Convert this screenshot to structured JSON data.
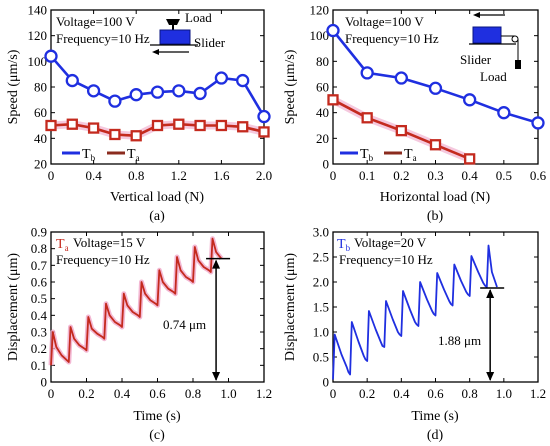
{
  "chart_data": [
    {
      "id": "a",
      "type": "line",
      "caption": "(a)",
      "xlabel": "Vertical load (N)",
      "ylabel": "Speed (μm/s)",
      "xlim": [
        0,
        2.0
      ],
      "ylim": [
        20,
        140
      ],
      "xticks": [
        "0",
        "0.4",
        "0.8",
        "1.2",
        "1.6",
        "2.0"
      ],
      "xtick_values": [
        0,
        0.4,
        0.8,
        1.2,
        1.6,
        2.0
      ],
      "yticks": [
        "20",
        "40",
        "60",
        "80",
        "100",
        "120",
        "140"
      ],
      "ytick_values": [
        20,
        40,
        60,
        80,
        100,
        120,
        140
      ],
      "annotations": [
        "Voltage=100 V",
        "Frequency=10 Hz"
      ],
      "icon_labels": [
        "Load",
        "Slider"
      ],
      "legend_placement": "bottom-left",
      "series": [
        {
          "name": "Tb",
          "main": "T",
          "sub": "b",
          "color": "#1f2fe0",
          "marker": "circle",
          "x": [
            0,
            0.2,
            0.4,
            0.6,
            0.8,
            1.0,
            1.2,
            1.4,
            1.6,
            1.8,
            2.0
          ],
          "y": [
            104,
            85,
            77,
            69,
            74,
            76,
            77,
            75,
            87,
            85,
            57
          ]
        },
        {
          "name": "Ta",
          "main": "T",
          "sub": "a",
          "color": "#c42a1e",
          "marker": "square",
          "x": [
            0,
            0.2,
            0.4,
            0.6,
            0.8,
            1.0,
            1.2,
            1.4,
            1.6,
            1.8,
            2.0
          ],
          "y": [
            50,
            51,
            48,
            43,
            42,
            50,
            51,
            50,
            50,
            49,
            45
          ]
        }
      ]
    },
    {
      "id": "b",
      "type": "line",
      "caption": "(b)",
      "xlabel": "Horizontal load (N)",
      "ylabel": "Speed (μm/s)",
      "xlim": [
        0,
        0.6
      ],
      "ylim": [
        0,
        120
      ],
      "xticks": [
        "0",
        "0.1",
        "0.2",
        "0.3",
        "0.4",
        "0.5",
        "0.6"
      ],
      "xtick_values": [
        0,
        0.1,
        0.2,
        0.3,
        0.4,
        0.5,
        0.6
      ],
      "yticks": [
        "0",
        "20",
        "40",
        "60",
        "80",
        "100",
        "120"
      ],
      "ytick_values": [
        0,
        20,
        40,
        60,
        80,
        100,
        120
      ],
      "annotations": [
        "Voltage=100 V",
        "Frequency=10 Hz"
      ],
      "icon_labels": [
        "Slider",
        "Load"
      ],
      "legend_placement": "bottom-left",
      "series": [
        {
          "name": "Tb",
          "main": "T",
          "sub": "b",
          "color": "#1f2fe0",
          "marker": "circle",
          "x": [
            0,
            0.1,
            0.2,
            0.3,
            0.4,
            0.5,
            0.6
          ],
          "y": [
            104,
            71,
            67,
            59,
            50,
            40,
            32
          ]
        },
        {
          "name": "Ta",
          "main": "T",
          "sub": "a",
          "color": "#c42a1e",
          "marker": "square",
          "x": [
            0,
            0.1,
            0.2,
            0.3,
            0.4
          ],
          "y": [
            50,
            36,
            26,
            15,
            4
          ]
        }
      ]
    },
    {
      "id": "c",
      "type": "line",
      "caption": "(c)",
      "xlabel": "Time (s)",
      "ylabel": "Displacement (μm)",
      "xlim": [
        0,
        1.2
      ],
      "ylim": [
        0,
        0.9
      ],
      "xticks": [
        "0",
        "0.2",
        "0.4",
        "0.6",
        "0.8",
        "1.0",
        "1.2"
      ],
      "xtick_values": [
        0,
        0.2,
        0.4,
        0.6,
        0.8,
        1.0,
        1.2
      ],
      "yticks": [
        "0",
        "0.1",
        "0.2",
        "0.3",
        "0.4",
        "0.5",
        "0.6",
        "0.7",
        "0.8",
        "0.9"
      ],
      "ytick_values": [
        0,
        0.1,
        0.2,
        0.3,
        0.4,
        0.5,
        0.6,
        0.7,
        0.8,
        0.9
      ],
      "label": {
        "main": "T",
        "sub": "a",
        "color": "#c42a1e"
      },
      "annotations": [
        "Voltage=15 V",
        "Frequency=10 Hz"
      ],
      "measure_label": "0.74 μm",
      "measure_value": 0.74,
      "series": [
        {
          "name": "Ta",
          "color": "#c42a1e",
          "x": [
            0.0,
            0.01,
            0.03,
            0.06,
            0.09,
            0.1,
            0.11,
            0.13,
            0.16,
            0.19,
            0.2,
            0.21,
            0.23,
            0.26,
            0.29,
            0.3,
            0.31,
            0.33,
            0.36,
            0.39,
            0.4,
            0.41,
            0.43,
            0.46,
            0.49,
            0.5,
            0.51,
            0.53,
            0.56,
            0.59,
            0.6,
            0.61,
            0.63,
            0.66,
            0.69,
            0.7,
            0.71,
            0.73,
            0.76,
            0.79,
            0.8,
            0.81,
            0.83,
            0.86,
            0.89,
            0.9,
            0.91,
            0.93,
            0.96
          ],
          "y": [
            0.1,
            0.3,
            0.21,
            0.16,
            0.13,
            0.12,
            0.33,
            0.26,
            0.22,
            0.2,
            0.19,
            0.39,
            0.32,
            0.29,
            0.27,
            0.26,
            0.47,
            0.4,
            0.36,
            0.34,
            0.33,
            0.53,
            0.46,
            0.42,
            0.4,
            0.39,
            0.6,
            0.53,
            0.49,
            0.47,
            0.46,
            0.67,
            0.6,
            0.56,
            0.54,
            0.53,
            0.75,
            0.67,
            0.63,
            0.61,
            0.6,
            0.81,
            0.73,
            0.69,
            0.67,
            0.66,
            0.86,
            0.78,
            0.74
          ]
        }
      ]
    },
    {
      "id": "d",
      "type": "line",
      "caption": "(d)",
      "xlabel": "Time (s)",
      "ylabel": "Displacement (μm)",
      "xlim": [
        0,
        1.2
      ],
      "ylim": [
        0,
        3.0
      ],
      "xticks": [
        "0",
        "0.2",
        "0.4",
        "0.6",
        "0.8",
        "1.0",
        "1.2"
      ],
      "xtick_values": [
        0,
        0.2,
        0.4,
        0.6,
        0.8,
        1.0,
        1.2
      ],
      "yticks": [
        "0",
        "0.5",
        "1.0",
        "1.5",
        "2.0",
        "2.5",
        "3.0"
      ],
      "ytick_values": [
        0,
        0.5,
        1.0,
        1.5,
        2.0,
        2.5,
        3.0
      ],
      "label": {
        "main": "T",
        "sub": "b",
        "color": "#1f2fe0"
      },
      "annotations": [
        "Voltage=20 V",
        "Frequency=10 Hz"
      ],
      "measure_label": "1.88 μm",
      "measure_value": 1.88,
      "series": [
        {
          "name": "Tb",
          "color": "#1f2fe0",
          "x": [
            0.0,
            0.01,
            0.05,
            0.08,
            0.09,
            0.1,
            0.11,
            0.15,
            0.18,
            0.19,
            0.2,
            0.21,
            0.25,
            0.28,
            0.29,
            0.3,
            0.31,
            0.35,
            0.38,
            0.39,
            0.4,
            0.41,
            0.45,
            0.48,
            0.49,
            0.5,
            0.51,
            0.55,
            0.58,
            0.59,
            0.6,
            0.61,
            0.65,
            0.68,
            0.69,
            0.7,
            0.71,
            0.75,
            0.78,
            0.79,
            0.8,
            0.81,
            0.85,
            0.88,
            0.89,
            0.9,
            0.91,
            0.93,
            0.96
          ],
          "y": [
            0.05,
            0.95,
            0.55,
            0.3,
            0.2,
            0.15,
            1.2,
            0.8,
            0.52,
            0.45,
            0.42,
            1.42,
            1.05,
            0.8,
            0.72,
            0.7,
            1.62,
            1.25,
            1.0,
            0.95,
            0.92,
            1.82,
            1.45,
            1.2,
            1.15,
            1.12,
            2.0,
            1.65,
            1.42,
            1.36,
            1.33,
            2.18,
            1.85,
            1.62,
            1.56,
            1.53,
            2.35,
            2.02,
            1.8,
            1.75,
            1.72,
            2.52,
            2.2,
            1.98,
            1.93,
            1.9,
            2.73,
            2.2,
            1.9
          ]
        }
      ]
    }
  ]
}
